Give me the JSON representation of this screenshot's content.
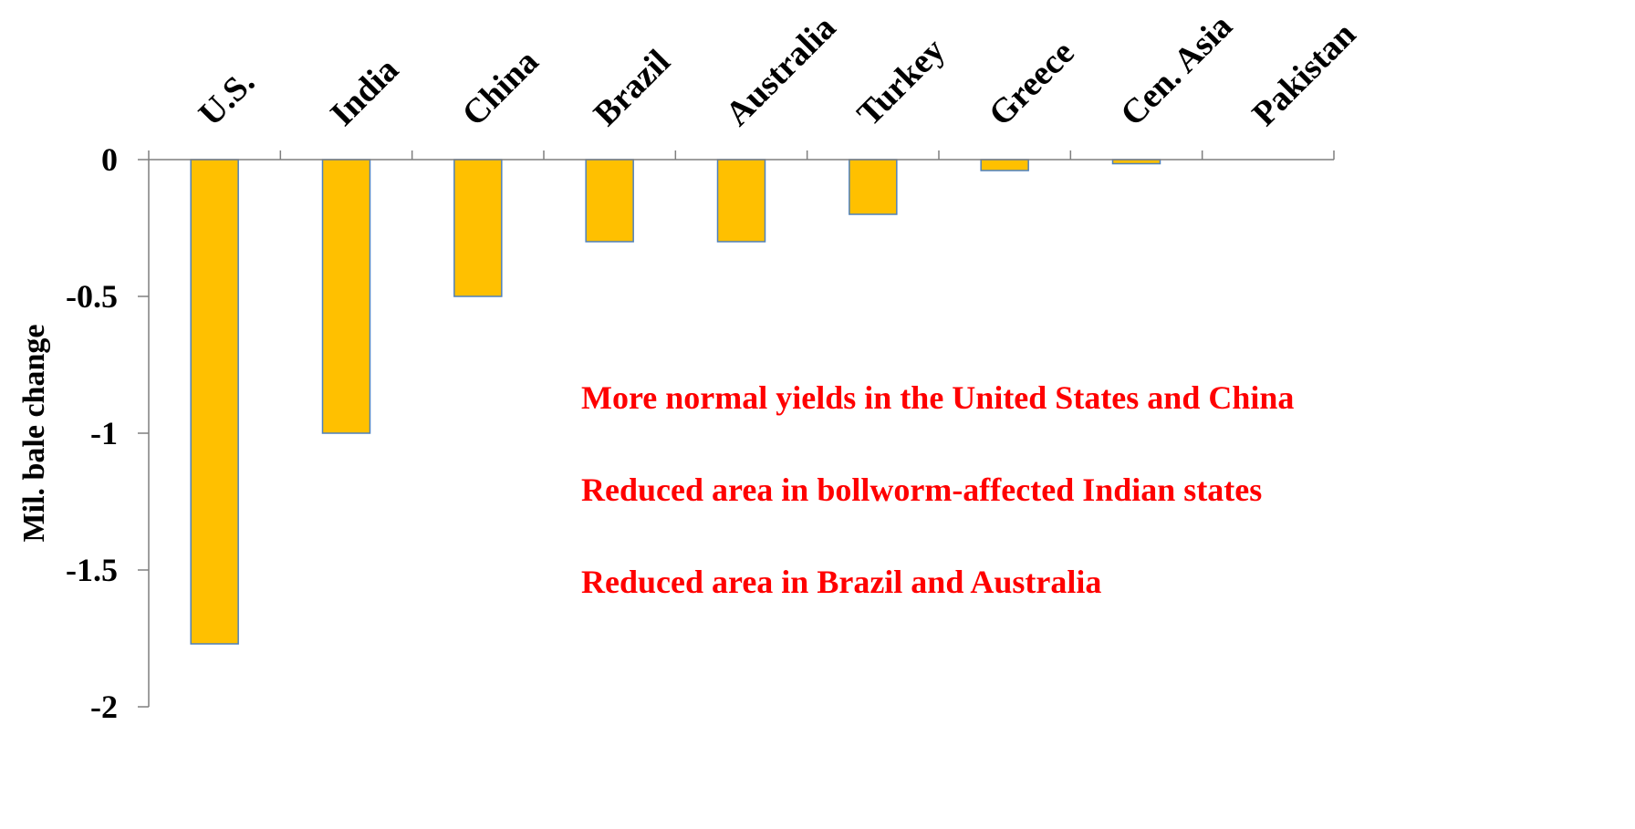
{
  "chart_data": {
    "type": "bar",
    "categories": [
      "U.S.",
      "India",
      "China",
      "Brazil",
      "Australia",
      "Turkey",
      "Greece",
      "Cen. Asia",
      "Pakistan"
    ],
    "values": [
      -1.77,
      -1.0,
      -0.5,
      -0.3,
      -0.3,
      -0.2,
      -0.04,
      -0.015,
      0
    ],
    "ylabel": "Mil. bale change",
    "yticks": [
      0,
      -0.5,
      -1,
      -1.5,
      -2
    ],
    "ytick_labels": [
      "0",
      "-0.5",
      "-1",
      "-1.5",
      "-2"
    ],
    "ylim": [
      -2,
      0
    ],
    "grid": false,
    "x_axis_position": "top",
    "bar_color": "#FFC000",
    "bar_edge_color": "#4F81BD",
    "annotation_color": "#FF0000",
    "annotations": [
      "More normal yields in the United States and China",
      "Reduced area in bollworm-affected Indian states",
      "Reduced area in Brazil and Australia"
    ]
  }
}
